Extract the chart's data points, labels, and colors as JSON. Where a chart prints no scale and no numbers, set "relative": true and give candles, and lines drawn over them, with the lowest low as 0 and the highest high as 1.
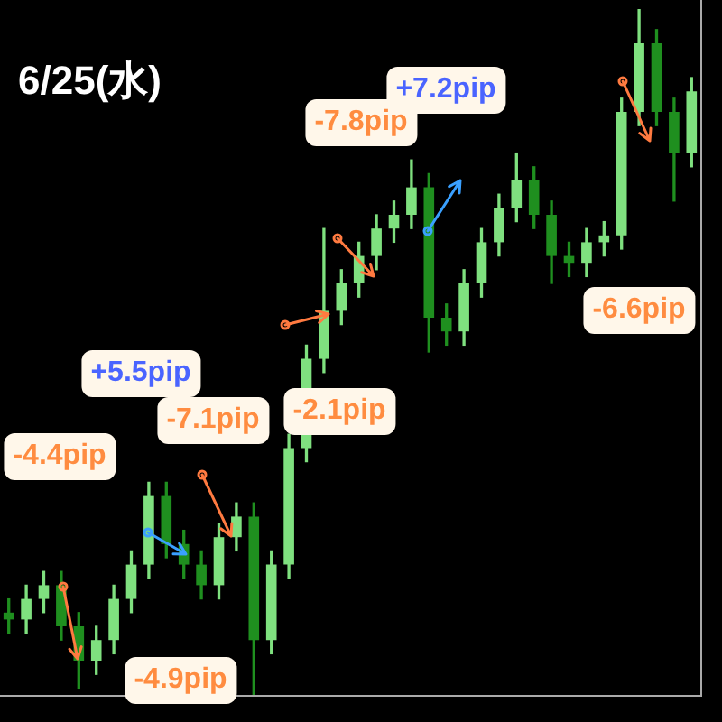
{
  "chart_data": {
    "type": "candlestick",
    "title": "6/25(水)",
    "relative": true,
    "tick_labels": false,
    "legend": false,
    "categories": [
      null,
      null,
      null,
      null,
      null,
      null,
      null,
      null,
      null,
      null,
      null,
      null,
      null,
      null,
      null,
      null,
      null,
      null,
      null,
      null,
      null,
      null,
      null,
      null,
      null,
      null,
      null,
      null,
      null,
      null,
      null,
      null,
      null,
      null,
      null,
      null,
      null,
      null,
      null,
      null
    ],
    "ohlc": [
      [
        0.12,
        0.14,
        0.09,
        0.11
      ],
      [
        0.11,
        0.16,
        0.09,
        0.14
      ],
      [
        0.14,
        0.18,
        0.12,
        0.16
      ],
      [
        0.16,
        0.18,
        0.08,
        0.1
      ],
      [
        0.1,
        0.12,
        0.01,
        0.05
      ],
      [
        0.05,
        0.1,
        0.03,
        0.08
      ],
      [
        0.08,
        0.16,
        0.06,
        0.14
      ],
      [
        0.14,
        0.21,
        0.12,
        0.19
      ],
      [
        0.19,
        0.31,
        0.17,
        0.29
      ],
      [
        0.29,
        0.31,
        0.2,
        0.22
      ],
      [
        0.22,
        0.24,
        0.17,
        0.19
      ],
      [
        0.19,
        0.21,
        0.14,
        0.16
      ],
      [
        0.16,
        0.25,
        0.14,
        0.23
      ],
      [
        0.23,
        0.28,
        0.21,
        0.26
      ],
      [
        0.26,
        0.28,
        0,
        0.08
      ],
      [
        0.08,
        0.21,
        0.06,
        0.19
      ],
      [
        0.19,
        0.38,
        0.17,
        0.36
      ],
      [
        0.36,
        0.51,
        0.34,
        0.49
      ],
      [
        0.49,
        0.68,
        0.47,
        0.56
      ],
      [
        0.56,
        0.62,
        0.54,
        0.6
      ],
      [
        0.6,
        0.66,
        0.58,
        0.64
      ],
      [
        0.64,
        0.7,
        0.62,
        0.68
      ],
      [
        0.68,
        0.72,
        0.66,
        0.7
      ],
      [
        0.7,
        0.78,
        0.68,
        0.74
      ],
      [
        0.74,
        0.76,
        0.5,
        0.55
      ],
      [
        0.55,
        0.57,
        0.51,
        0.53
      ],
      [
        0.53,
        0.62,
        0.51,
        0.6
      ],
      [
        0.6,
        0.68,
        0.58,
        0.66
      ],
      [
        0.66,
        0.73,
        0.64,
        0.71
      ],
      [
        0.71,
        0.79,
        0.69,
        0.75
      ],
      [
        0.75,
        0.77,
        0.68,
        0.7
      ],
      [
        0.7,
        0.72,
        0.6,
        0.64
      ],
      [
        0.64,
        0.66,
        0.61,
        0.63
      ],
      [
        0.63,
        0.68,
        0.61,
        0.66
      ],
      [
        0.66,
        0.69,
        0.64,
        0.67
      ],
      [
        0.67,
        0.87,
        0.65,
        0.85
      ],
      [
        0.85,
        1,
        0.83,
        0.95
      ],
      [
        0.95,
        0.97,
        0.83,
        0.85
      ],
      [
        0.85,
        0.87,
        0.72,
        0.79
      ],
      [
        0.79,
        0.9,
        0.77,
        0.88
      ]
    ],
    "colors": [
      "#1f8f1f",
      "#7fe07f",
      "#7fe07f",
      "#1f8f1f",
      "#1f8f1f",
      "#7fe07f",
      "#7fe07f",
      "#7fe07f",
      "#7fe07f",
      "#1f8f1f",
      "#1f8f1f",
      "#1f8f1f",
      "#7fe07f",
      "#7fe07f",
      "#1f8f1f",
      "#7fe07f",
      "#7fe07f",
      "#7fe07f",
      "#7fe07f",
      "#7fe07f",
      "#7fe07f",
      "#7fe07f",
      "#7fe07f",
      "#7fe07f",
      "#1f8f1f",
      "#1f8f1f",
      "#7fe07f",
      "#7fe07f",
      "#7fe07f",
      "#7fe07f",
      "#1f8f1f",
      "#1f8f1f",
      "#1f8f1f",
      "#7fe07f",
      "#7fe07f",
      "#7fe07f",
      "#7fe07f",
      "#1f8f1f",
      "#1f8f1f",
      "#7fe07f"
    ],
    "annotations": [
      "-4.4pip",
      "+5.5pip",
      "-7.1pip",
      "-4.9pip",
      "-7.8pip",
      "-2.1pip",
      "+7.2pip",
      "-6.6pip"
    ]
  }
}
